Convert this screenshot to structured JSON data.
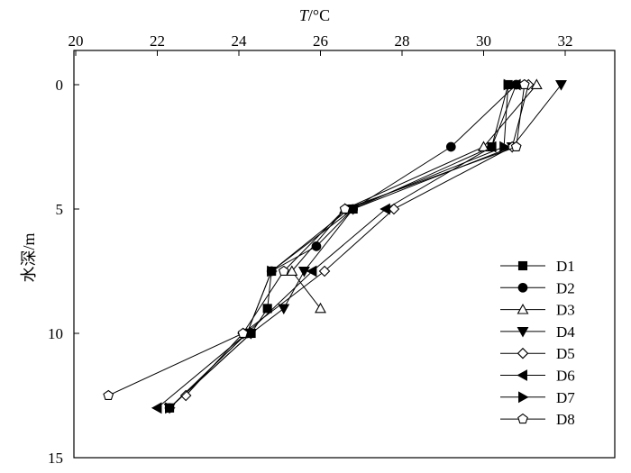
{
  "chart_data": {
    "type": "line",
    "title": "",
    "xlabel_var": "T",
    "xlabel_unit": "/°C",
    "ylabel": "水深/m",
    "xlim": [
      20,
      32
    ],
    "ylim": [
      0,
      15
    ],
    "x_axis_position": "top",
    "y_axis_inverted": true,
    "xticks": [
      "20",
      "22",
      "24",
      "26",
      "28",
      "30",
      "32"
    ],
    "yticks": [
      "0",
      "5",
      "10",
      "15"
    ],
    "grid": false,
    "legend_position": "bottom-right",
    "series": [
      {
        "name": "D1",
        "marker": "square-filled",
        "points": [
          [
            30.6,
            0
          ],
          [
            30.2,
            2.5
          ],
          [
            26.8,
            5
          ],
          [
            24.8,
            7.5
          ],
          [
            24.7,
            9
          ],
          [
            24.3,
            10
          ],
          [
            22.3,
            13
          ]
        ]
      },
      {
        "name": "D2",
        "marker": "circle-filled",
        "points": [
          [
            30.8,
            0
          ],
          [
            29.2,
            2.5
          ],
          [
            26.8,
            5
          ],
          [
            25.9,
            6.5
          ],
          [
            24.8,
            7.5
          ],
          [
            24.2,
            10
          ],
          [
            22.3,
            13
          ]
        ]
      },
      {
        "name": "D3",
        "marker": "triangle-up-open",
        "points": [
          [
            31.3,
            0
          ],
          [
            30.0,
            2.5
          ],
          [
            26.6,
            5
          ],
          [
            25.3,
            7.5
          ],
          [
            26.0,
            9
          ]
        ]
      },
      {
        "name": "D4",
        "marker": "triangle-down-filled",
        "points": [
          [
            31.9,
            0
          ],
          [
            30.7,
            2.5
          ],
          [
            26.8,
            5
          ],
          [
            25.6,
            7.5
          ],
          [
            25.1,
            9
          ],
          [
            24.3,
            10
          ],
          [
            22.3,
            13
          ]
        ]
      },
      {
        "name": "D5",
        "marker": "diamond-open",
        "points": [
          [
            31.1,
            0
          ],
          [
            30.7,
            2.5
          ],
          [
            27.8,
            5
          ],
          [
            26.1,
            7.5
          ],
          [
            24.1,
            10
          ],
          [
            22.7,
            12.5
          ]
        ]
      },
      {
        "name": "D6",
        "marker": "triangle-left-filled",
        "points": [
          [
            30.8,
            0
          ],
          [
            30.2,
            2.5
          ],
          [
            27.6,
            5
          ],
          [
            25.8,
            7.5
          ],
          [
            24.2,
            10
          ],
          [
            22.0,
            13
          ]
        ]
      },
      {
        "name": "D7",
        "marker": "triangle-right-filled",
        "points": [
          [
            30.6,
            0
          ],
          [
            30.5,
            2.5
          ],
          [
            26.7,
            5
          ],
          [
            24.8,
            7.5
          ],
          [
            24.2,
            10
          ],
          [
            22.3,
            13
          ]
        ]
      },
      {
        "name": "D8",
        "marker": "pentagon-open",
        "points": [
          [
            31.0,
            0
          ],
          [
            30.8,
            2.5
          ],
          [
            26.6,
            5
          ],
          [
            25.1,
            7.5
          ],
          [
            24.1,
            10
          ],
          [
            20.8,
            12.5
          ]
        ]
      }
    ]
  }
}
